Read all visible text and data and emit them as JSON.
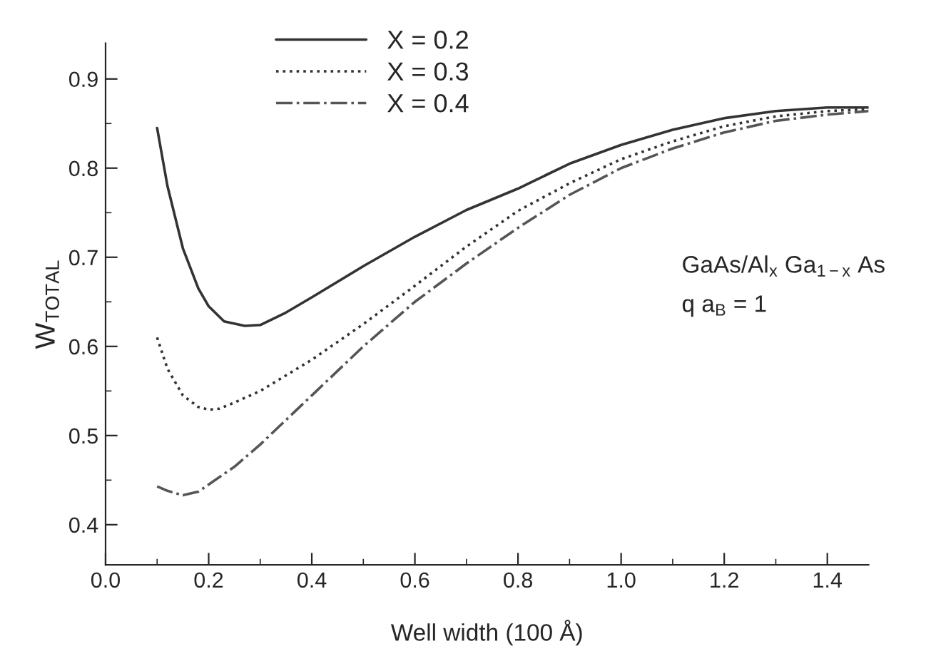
{
  "chart_data": {
    "type": "line",
    "xlabel": "Well width (100 Å)",
    "ylabel": "W$_{TOTAL}$",
    "xlim": [
      0.0,
      1.48
    ],
    "xticks": [
      {
        "value": 0.0,
        "label": "0.0"
      },
      0.2,
      0.4,
      0.6,
      0.8,
      {
        "value": 1.0,
        "label": "1.0"
      },
      1.2,
      1.4
    ],
    "ylim": [
      0.355,
      0.94
    ],
    "yticks": [
      0.4,
      0.5,
      0.6,
      0.7,
      0.8,
      0.9
    ],
    "grid": false,
    "legend": "top",
    "marker": "none",
    "annotations": [
      "GaAs/Al$_{x}$ Ga$_{1−x}$ As",
      "q a$_{B}$ = 1"
    ],
    "series": [
      {
        "name": "X = 0.2",
        "color": "#333333",
        "line_style": "solid",
        "x": [
          0.1,
          0.12,
          0.15,
          0.18,
          0.2,
          0.23,
          0.27,
          0.3,
          0.35,
          0.4,
          0.5,
          0.6,
          0.7,
          0.8,
          0.9,
          1.0,
          1.1,
          1.2,
          1.3,
          1.4,
          1.48
        ],
        "values": [
          0.845,
          0.78,
          0.71,
          0.665,
          0.645,
          0.628,
          0.623,
          0.624,
          0.638,
          0.655,
          0.69,
          0.723,
          0.753,
          0.777,
          0.805,
          0.826,
          0.843,
          0.856,
          0.864,
          0.868,
          0.868
        ]
      },
      {
        "name": "X = 0.3",
        "color": "#333333",
        "line_style": "dotted",
        "x": [
          0.1,
          0.12,
          0.15,
          0.18,
          0.2,
          0.22,
          0.25,
          0.3,
          0.4,
          0.5,
          0.6,
          0.7,
          0.8,
          0.9,
          1.0,
          1.1,
          1.2,
          1.3,
          1.4,
          1.48
        ],
        "values": [
          0.61,
          0.575,
          0.545,
          0.532,
          0.529,
          0.53,
          0.537,
          0.55,
          0.585,
          0.625,
          0.668,
          0.712,
          0.752,
          0.783,
          0.81,
          0.83,
          0.847,
          0.858,
          0.864,
          0.866
        ]
      },
      {
        "name": "X = 0.4",
        "color": "#555555",
        "line_style": "dashdot",
        "x": [
          0.1,
          0.12,
          0.15,
          0.18,
          0.2,
          0.25,
          0.3,
          0.4,
          0.5,
          0.6,
          0.7,
          0.8,
          0.9,
          1.0,
          1.1,
          1.2,
          1.3,
          1.4,
          1.48
        ],
        "values": [
          0.443,
          0.438,
          0.433,
          0.437,
          0.445,
          0.465,
          0.49,
          0.545,
          0.6,
          0.65,
          0.693,
          0.733,
          0.77,
          0.8,
          0.822,
          0.84,
          0.853,
          0.86,
          0.864
        ]
      }
    ]
  }
}
